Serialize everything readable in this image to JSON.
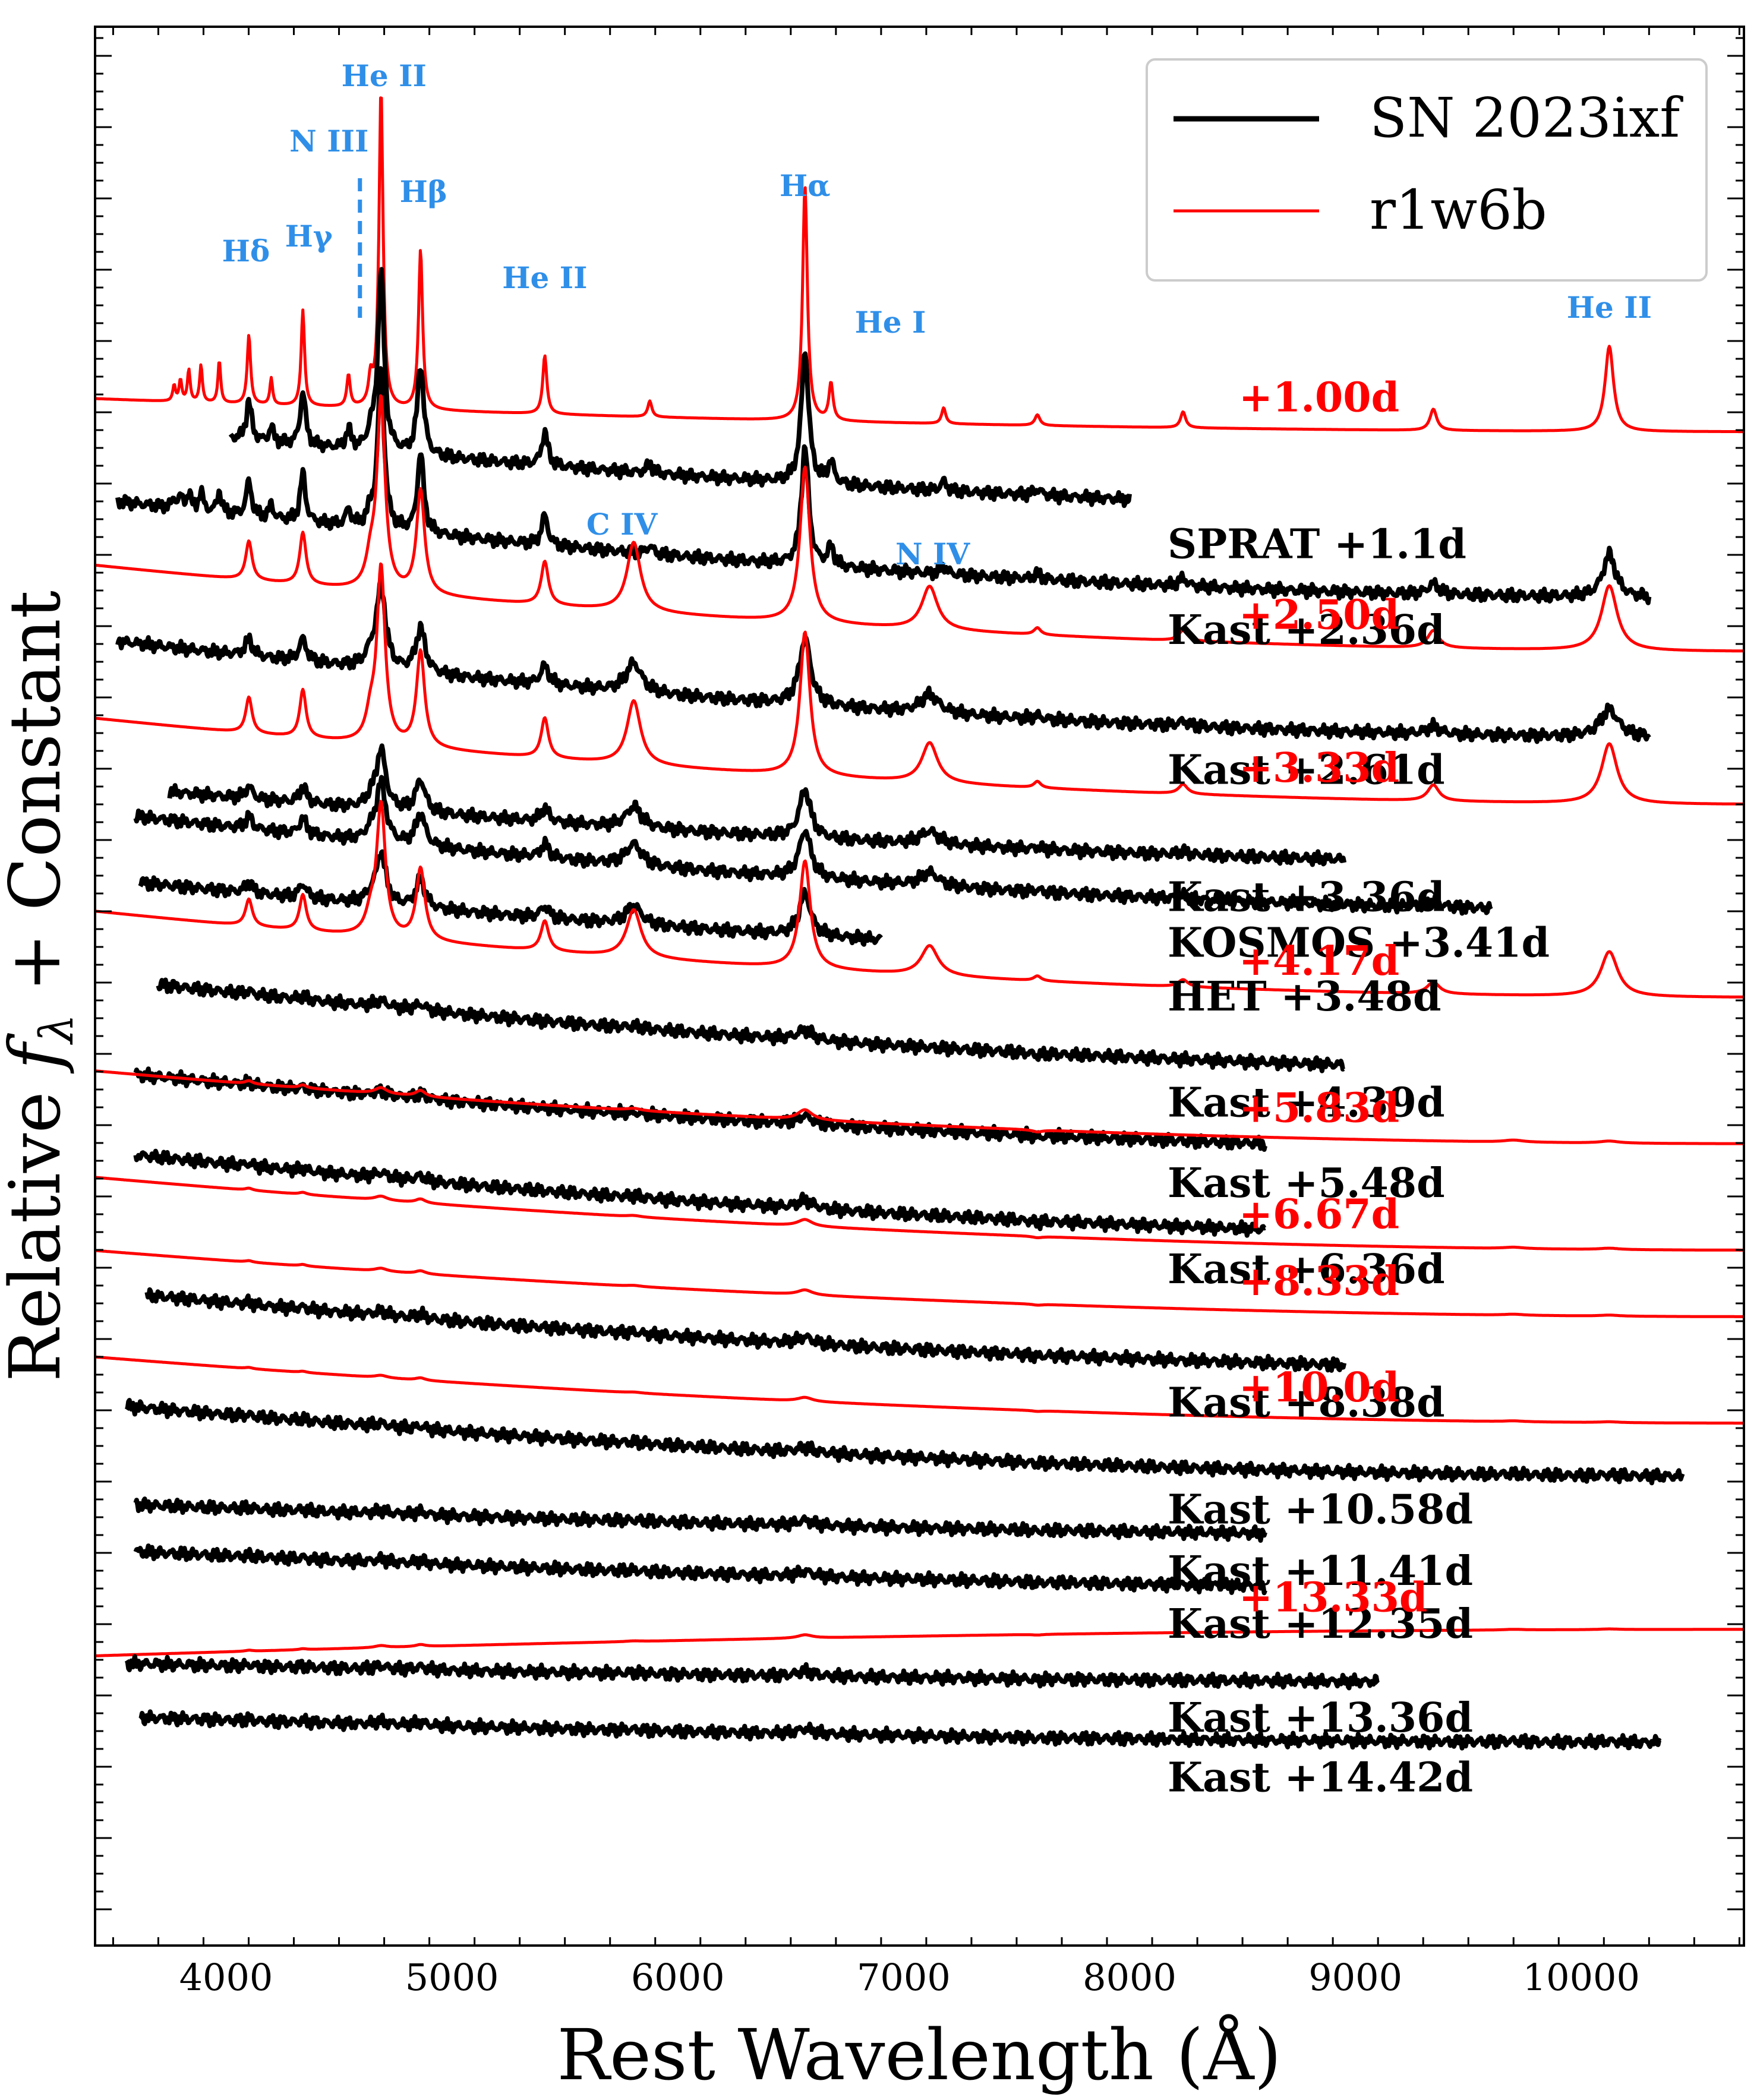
{
  "chart_data": {
    "type": "line",
    "xlabel": "Rest Wavelength (Å)",
    "ylabel": "Relative f_λ + Constant",
    "xlim": [
      3420,
      10720
    ],
    "xticks": [
      4000,
      5000,
      6000,
      7000,
      8000,
      9000,
      10000
    ],
    "xtick_labels": [
      "4000",
      "5000",
      "6000",
      "7000",
      "8000",
      "9000",
      "10000"
    ],
    "legend": [
      {
        "label": "SN 2023ixf",
        "color": "#000000"
      },
      {
        "label": "r1w6b",
        "color": "#ff0000"
      }
    ],
    "legend_position": "top-right",
    "colors": {
      "observed": "#000000",
      "model": "#ff0000",
      "line_id": "#2f8fe8"
    },
    "line_ids": [
      {
        "label": "Hδ",
        "wavelength": 4101
      },
      {
        "label": "Hγ",
        "wavelength": 4340
      },
      {
        "label": "N III",
        "wavelength": 4640,
        "dashed": true
      },
      {
        "label": "He II",
        "wavelength": 4686
      },
      {
        "label": "Hβ",
        "wavelength": 4861
      },
      {
        "label": "He II",
        "wavelength": 5411
      },
      {
        "label": "Hα",
        "wavelength": 6563
      },
      {
        "label": "He I",
        "wavelength": 6678
      },
      {
        "label": "C IV",
        "wavelength": 5805
      },
      {
        "label": "N IV",
        "wavelength": 7115
      },
      {
        "label": "He II",
        "wavelength": 10124
      }
    ],
    "series": [
      {
        "name": "r1w6b",
        "label": "+1.00d",
        "type": "model",
        "range": [
          3420,
          10720
        ],
        "offset": 23.6,
        "slope": 0.5,
        "strength": 1.6,
        "widthScale": 0.9,
        "lines": "early"
      },
      {
        "name": "SN 2023ixf",
        "label": "SPRAT +1.1d",
        "type": "obs",
        "range": [
          4020,
          8000
        ],
        "offset": 22.4,
        "slope": 1.3,
        "strength": 0.9,
        "widthScale": 1.4,
        "lines": "early"
      },
      {
        "name": "SN 2023ixf",
        "label": "Kast +2.36d",
        "type": "obs",
        "range": [
          3520,
          10300
        ],
        "offset": 21.1,
        "slope": 1.5,
        "strength": 0.8,
        "widthScale": 1.4,
        "lines": "early"
      },
      {
        "name": "r1w6b",
        "label": "+2.50d",
        "type": "model",
        "range": [
          3420,
          10720
        ],
        "offset": 20.3,
        "slope": 1.3,
        "strength": 1.3,
        "widthScale": 1.2,
        "lines": "mid"
      },
      {
        "name": "SN 2023ixf",
        "label": "Kast +2.61d",
        "type": "obs",
        "range": [
          3520,
          10300
        ],
        "offset": 19.0,
        "slope": 1.5,
        "strength": 0.55,
        "widthScale": 1.4,
        "lines": "mid"
      },
      {
        "name": "r1w6b",
        "label": "+3.33d",
        "type": "model",
        "range": [
          3420,
          10720
        ],
        "offset": 18.0,
        "slope": 1.3,
        "strength": 1.2,
        "widthScale": 1.2,
        "lines": "mid"
      },
      {
        "name": "SN 2023ixf",
        "label": "Kast +3.36d",
        "type": "obs",
        "range": [
          3750,
          8950
        ],
        "offset": 17.1,
        "slope": 1.2,
        "strength": 0.4,
        "widthScale": 1.4,
        "lines": "mid"
      },
      {
        "name": "SN 2023ixf",
        "label": "KOSMOS +3.41d",
        "type": "obs",
        "range": [
          3600,
          9600
        ],
        "offset": 16.4,
        "slope": 1.5,
        "strength": 0.4,
        "widthScale": 1.4,
        "lines": "mid"
      },
      {
        "name": "SN 2023ixf",
        "label": "HET +3.48d",
        "type": "obs",
        "range": [
          3620,
          6900
        ],
        "offset": 15.6,
        "slope": 1.3,
        "strength": 0.35,
        "widthScale": 1.4,
        "lines": "mid"
      },
      {
        "name": "r1w6b",
        "label": "+4.17d",
        "type": "model",
        "range": [
          3420,
          10720
        ],
        "offset": 15.1,
        "slope": 1.3,
        "strength": 0.9,
        "widthScale": 1.3,
        "lines": "mid"
      },
      {
        "name": "SN 2023ixf",
        "label": "Kast +4.39d",
        "type": "obs",
        "range": [
          3700,
          8950
        ],
        "offset": 14.0,
        "slope": 1.4,
        "strength": 0.3,
        "widthScale": 1.4,
        "lines": "late"
      },
      {
        "name": "SN 2023ixf",
        "label": "Kast +5.48d",
        "type": "obs",
        "range": [
          3600,
          8600
        ],
        "offset": 12.8,
        "slope": 1.2,
        "strength": 0.25,
        "widthScale": 1.4,
        "lines": "late"
      },
      {
        "name": "r1w6b",
        "label": "+5.83d",
        "type": "model",
        "range": [
          3420,
          10720
        ],
        "offset": 12.9,
        "slope": 1.1,
        "strength": 0.3,
        "widthScale": 1.3,
        "lines": "late"
      },
      {
        "name": "SN 2023ixf",
        "label": "Kast +6.36d",
        "type": "obs",
        "range": [
          3600,
          8600
        ],
        "offset": 11.5,
        "slope": 1.3,
        "strength": 0.25,
        "widthScale": 1.4,
        "lines": "late"
      },
      {
        "name": "r1w6b",
        "label": "+6.67d",
        "type": "model",
        "range": [
          3420,
          10720
        ],
        "offset": 11.3,
        "slope": 1.1,
        "strength": 0.2,
        "widthScale": 1.3,
        "lines": "late"
      },
      {
        "name": "r1w6b",
        "label": "+8.33d",
        "type": "model",
        "range": [
          3420,
          10720
        ],
        "offset": 10.3,
        "slope": 1.0,
        "strength": 0.15,
        "widthScale": 1.3,
        "lines": "late"
      },
      {
        "name": "SN 2023ixf",
        "label": "Kast +8.38d",
        "type": "obs",
        "range": [
          3650,
          8950
        ],
        "offset": 9.5,
        "slope": 1.2,
        "strength": 0.2,
        "widthScale": 1.4,
        "lines": "late"
      },
      {
        "name": "r1w6b",
        "label": "+10.0d",
        "type": "model",
        "range": [
          3420,
          10720
        ],
        "offset": 8.7,
        "slope": 1.0,
        "strength": 0.12,
        "widthScale": 1.3,
        "lines": "late"
      },
      {
        "name": "SN 2023ixf",
        "label": "Kast +10.58d",
        "type": "obs",
        "range": [
          3560,
          10450
        ],
        "offset": 7.9,
        "slope": 1.1,
        "strength": 0.15,
        "widthScale": 1.4,
        "lines": "late"
      },
      {
        "name": "SN 2023ixf",
        "label": "Kast +11.41d",
        "type": "obs",
        "range": [
          3600,
          8600
        ],
        "offset": 7.0,
        "slope": 0.5,
        "strength": 0.15,
        "widthScale": 1.4,
        "lines": "late"
      },
      {
        "name": "SN 2023ixf",
        "label": "Kast +12.35d",
        "type": "obs",
        "range": [
          3600,
          8600
        ],
        "offset": 6.2,
        "slope": 0.6,
        "strength": 0.15,
        "widthScale": 1.4,
        "lines": "late"
      },
      {
        "name": "r1w6b",
        "label": "+13.33d",
        "type": "model",
        "range": [
          3420,
          10720
        ],
        "offset": 5.6,
        "slope": -0.4,
        "strength": 0.1,
        "widthScale": 1.3,
        "lines": "late"
      },
      {
        "name": "SN 2023ixf",
        "label": "Kast +13.36d",
        "type": "obs",
        "range": [
          3560,
          9100
        ],
        "offset": 4.8,
        "slope": 0.3,
        "strength": 0.15,
        "widthScale": 1.4,
        "lines": "late"
      },
      {
        "name": "SN 2023ixf",
        "label": "Kast +14.42d",
        "type": "obs",
        "range": [
          3620,
          10350
        ],
        "offset": 3.9,
        "slope": 0.4,
        "strength": 0.15,
        "widthScale": 1.4,
        "lines": "late"
      }
    ]
  }
}
